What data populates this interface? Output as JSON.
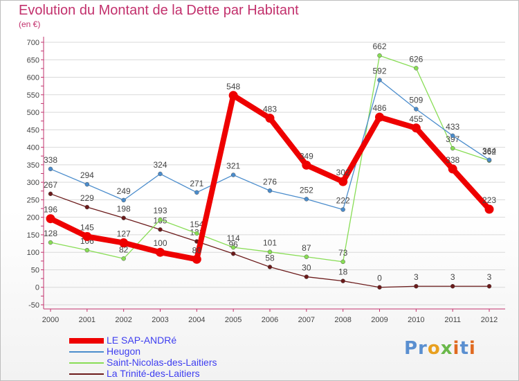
{
  "title": "Evolution du Montant de la Dette par Habitant",
  "unit": "(en €)",
  "logo_text": "Proxiti",
  "colors": {
    "title": "#c2306c",
    "axis": "#c2306c",
    "grid": "#d9d9d9",
    "label": "#444444"
  },
  "chart_data": {
    "type": "line",
    "title": "Evolution du Montant de la Dette par Habitant",
    "ylabel": "(en €)",
    "ylim": [
      -50,
      700
    ],
    "yticks": [
      -50,
      0,
      50,
      100,
      150,
      200,
      250,
      300,
      350,
      400,
      450,
      500,
      550,
      600,
      650,
      700
    ],
    "grid": "horizontal",
    "legend_position": "bottom-left",
    "x": [
      "2000",
      "2001",
      "2002",
      "2003",
      "2004",
      "2005",
      "2006",
      "2007",
      "2008",
      "2009",
      "2010",
      "2011",
      "2012"
    ],
    "series": [
      {
        "name": "LE SAP-ANDRé",
        "color": "#ee0000",
        "values": [
          196,
          145,
          127,
          100,
          80,
          548,
          483,
          349,
          302,
          486,
          455,
          338,
          223
        ]
      },
      {
        "name": "Heugon",
        "color": "#4a8ccc",
        "values": [
          338,
          294,
          249,
          324,
          271,
          321,
          276,
          252,
          222,
          592,
          509,
          433,
          364
        ]
      },
      {
        "name": "Saint-Nicolas-des-Laitiers",
        "color": "#88dd55",
        "values": [
          128,
          106,
          82,
          193,
          154,
          114,
          101,
          87,
          73,
          662,
          626,
          397,
          362
        ]
      },
      {
        "name": "La Trinité-des-Laitiers",
        "color": "#6b1a1a",
        "values": [
          267,
          229,
          198,
          165,
          131,
          96,
          58,
          30,
          18,
          0,
          3,
          3,
          3
        ]
      }
    ]
  }
}
